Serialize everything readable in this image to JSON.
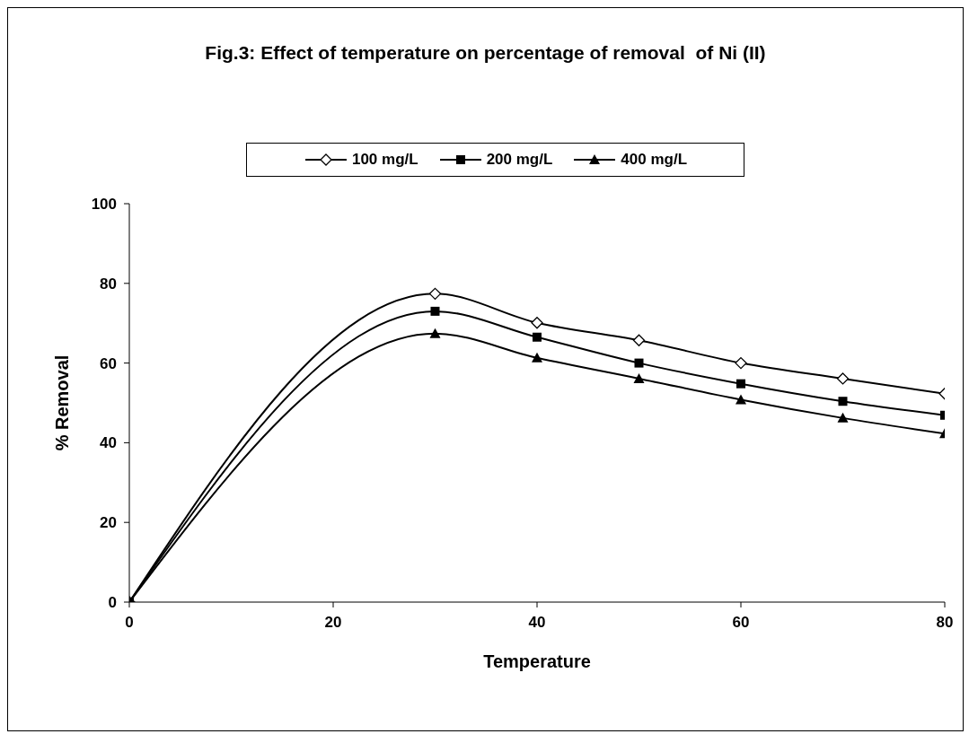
{
  "chart_data": {
    "type": "line",
    "title": "Fig.3: Effect of temperature on percentage of removal  of Ni (II)",
    "xlabel": "Temperature",
    "ylabel": "% Removal",
    "x": [
      0,
      30,
      40,
      50,
      60,
      70,
      80
    ],
    "xlim": [
      0,
      80
    ],
    "xticks": [
      0,
      20,
      40,
      60,
      80
    ],
    "ylim": [
      0,
      100
    ],
    "yticks": [
      0,
      20,
      40,
      60,
      80,
      100
    ],
    "grid": false,
    "legend": "top",
    "line_style": "solid",
    "series": [
      {
        "name": "100 mg/L",
        "color": "#000000",
        "marker": "diamond",
        "values": [
          0,
          77.4,
          70.1,
          65.7,
          60.0,
          56.1,
          52.3
        ]
      },
      {
        "name": "200 mg/L",
        "color": "#000000",
        "marker": "square",
        "values": [
          0,
          73.0,
          66.5,
          60.0,
          54.8,
          50.4,
          46.9
        ]
      },
      {
        "name": "400 mg/L",
        "color": "#000000",
        "marker": "triangle",
        "values": [
          0,
          67.4,
          61.3,
          56.1,
          50.8,
          46.2,
          42.3
        ]
      }
    ]
  }
}
